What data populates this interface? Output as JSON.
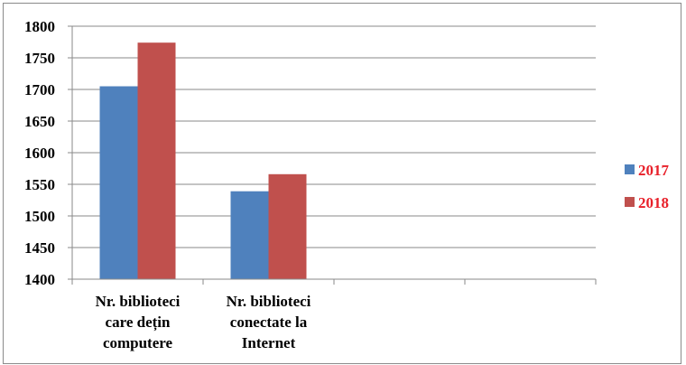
{
  "chart_data": {
    "type": "bar",
    "title": "",
    "xlabel": "",
    "ylabel": "",
    "ylim": [
      1400,
      1800
    ],
    "ytick_step": 50,
    "categories": [
      [
        "Nr. biblioteci",
        "care dețin",
        "computere"
      ],
      [
        "Nr. biblioteci",
        "conectate la",
        "Internet"
      ],
      [],
      []
    ],
    "series": [
      {
        "name": "2017",
        "color": "#4f81bd",
        "values": [
          1705,
          1539,
          null,
          null
        ]
      },
      {
        "name": "2018",
        "color": "#c0504d",
        "values": [
          1774,
          1566,
          null,
          null
        ]
      }
    ],
    "legend": "right",
    "grid": true,
    "legend_text_color": "#e8202a"
  }
}
